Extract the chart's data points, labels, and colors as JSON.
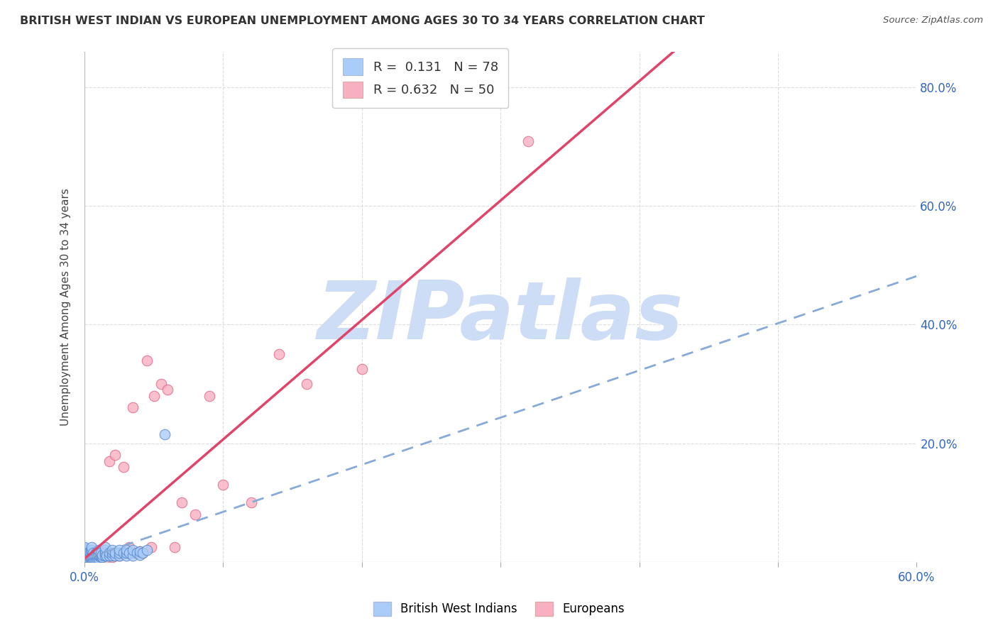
{
  "title": "BRITISH WEST INDIAN VS EUROPEAN UNEMPLOYMENT AMONG AGES 30 TO 34 YEARS CORRELATION CHART",
  "source": "Source: ZipAtlas.com",
  "ylabel": "Unemployment Among Ages 30 to 34 years",
  "xlim": [
    0.0,
    0.6
  ],
  "ylim": [
    0.0,
    0.86
  ],
  "yticks_right": [
    0.0,
    0.2,
    0.4,
    0.6,
    0.8
  ],
  "yticklabels_right": [
    "",
    "20.0%",
    "40.0%",
    "60.0%",
    "80.0%"
  ],
  "bwi_color": "#aaccf8",
  "bwi_edge_color": "#5588cc",
  "eur_color": "#f8b0c0",
  "eur_edge_color": "#dd6688",
  "bwi_R": 0.131,
  "bwi_N": 78,
  "eur_R": 0.632,
  "eur_N": 50,
  "trend_bwi_color": "#88aad8",
  "trend_eur_color": "#e04468",
  "watermark": "ZIPatlas",
  "watermark_color": "#ccddf5",
  "bwi_x": [
    0.0,
    0.0,
    0.0,
    0.0,
    0.0,
    0.0,
    0.0,
    0.0,
    0.0,
    0.0,
    0.002,
    0.002,
    0.002,
    0.002,
    0.002,
    0.003,
    0.003,
    0.003,
    0.004,
    0.004,
    0.004,
    0.004,
    0.005,
    0.005,
    0.005,
    0.005,
    0.005,
    0.005,
    0.005,
    0.005,
    0.006,
    0.006,
    0.006,
    0.007,
    0.007,
    0.008,
    0.008,
    0.008,
    0.009,
    0.009,
    0.01,
    0.01,
    0.01,
    0.01,
    0.01,
    0.012,
    0.012,
    0.012,
    0.013,
    0.013,
    0.015,
    0.015,
    0.015,
    0.015,
    0.016,
    0.018,
    0.018,
    0.02,
    0.02,
    0.02,
    0.022,
    0.022,
    0.025,
    0.025,
    0.025,
    0.028,
    0.03,
    0.03,
    0.03,
    0.032,
    0.035,
    0.035,
    0.038,
    0.04,
    0.04,
    0.042,
    0.045,
    0.058
  ],
  "bwi_y": [
    0.0,
    0.005,
    0.008,
    0.01,
    0.012,
    0.015,
    0.018,
    0.02,
    0.022,
    0.025,
    0.005,
    0.008,
    0.01,
    0.012,
    0.015,
    0.005,
    0.01,
    0.015,
    0.005,
    0.008,
    0.01,
    0.015,
    0.005,
    0.008,
    0.01,
    0.012,
    0.015,
    0.018,
    0.02,
    0.025,
    0.005,
    0.01,
    0.015,
    0.005,
    0.01,
    0.005,
    0.01,
    0.015,
    0.005,
    0.01,
    0.005,
    0.01,
    0.012,
    0.015,
    0.02,
    0.008,
    0.01,
    0.015,
    0.008,
    0.012,
    0.01,
    0.015,
    0.02,
    0.025,
    0.01,
    0.01,
    0.015,
    0.01,
    0.015,
    0.02,
    0.01,
    0.015,
    0.01,
    0.015,
    0.02,
    0.015,
    0.01,
    0.015,
    0.02,
    0.015,
    0.01,
    0.02,
    0.015,
    0.012,
    0.018,
    0.015,
    0.02,
    0.215
  ],
  "eur_x": [
    0.0,
    0.0,
    0.0,
    0.005,
    0.005,
    0.005,
    0.005,
    0.008,
    0.008,
    0.01,
    0.01,
    0.01,
    0.012,
    0.012,
    0.015,
    0.015,
    0.015,
    0.018,
    0.018,
    0.02,
    0.02,
    0.022,
    0.022,
    0.025,
    0.025,
    0.028,
    0.028,
    0.03,
    0.03,
    0.032,
    0.035,
    0.035,
    0.038,
    0.04,
    0.042,
    0.045,
    0.048,
    0.05,
    0.055,
    0.06,
    0.065,
    0.07,
    0.08,
    0.09,
    0.1,
    0.12,
    0.14,
    0.16,
    0.2,
    0.32
  ],
  "eur_y": [
    0.005,
    0.01,
    0.015,
    0.005,
    0.008,
    0.01,
    0.015,
    0.005,
    0.01,
    0.005,
    0.01,
    0.015,
    0.008,
    0.015,
    0.005,
    0.01,
    0.015,
    0.01,
    0.17,
    0.008,
    0.015,
    0.01,
    0.18,
    0.01,
    0.015,
    0.015,
    0.16,
    0.015,
    0.02,
    0.025,
    0.015,
    0.26,
    0.015,
    0.018,
    0.015,
    0.34,
    0.025,
    0.28,
    0.3,
    0.29,
    0.025,
    0.1,
    0.08,
    0.28,
    0.13,
    0.1,
    0.35,
    0.3,
    0.325,
    0.71
  ],
  "background_color": "#ffffff",
  "grid_color": "#dddddd",
  "scatter_size": 110
}
